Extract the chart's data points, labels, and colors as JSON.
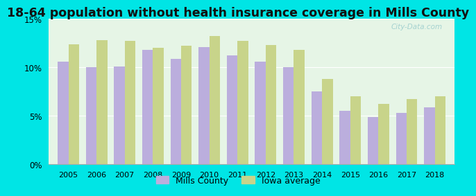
{
  "title": "18-64 population without health insurance coverage in Mills County",
  "years": [
    2005,
    2006,
    2007,
    2008,
    2009,
    2010,
    2011,
    2012,
    2013,
    2014,
    2015,
    2016,
    2017,
    2018
  ],
  "mills_county": [
    10.6,
    10.0,
    10.1,
    11.8,
    10.9,
    12.1,
    11.2,
    10.6,
    10.0,
    7.5,
    5.5,
    4.9,
    5.3,
    5.9
  ],
  "iowa_average": [
    12.4,
    12.8,
    12.7,
    12.0,
    12.2,
    13.2,
    12.7,
    12.3,
    11.8,
    8.8,
    7.0,
    6.2,
    6.7,
    7.0
  ],
  "mills_color": "#bbaedd",
  "iowa_color": "#c8d48a",
  "bg_color_top": "#e6f5e6",
  "bg_color_bottom": "#f0faf0",
  "outer_bg": "#00e5e5",
  "ylim": [
    0,
    15
  ],
  "yticks": [
    0,
    5,
    10,
    15
  ],
  "ytick_labels": [
    "0%",
    "5%",
    "10%",
    "15%"
  ],
  "legend_mills": "Mills County",
  "legend_iowa": "Iowa average",
  "title_fontsize": 12.5,
  "bar_width": 0.38
}
